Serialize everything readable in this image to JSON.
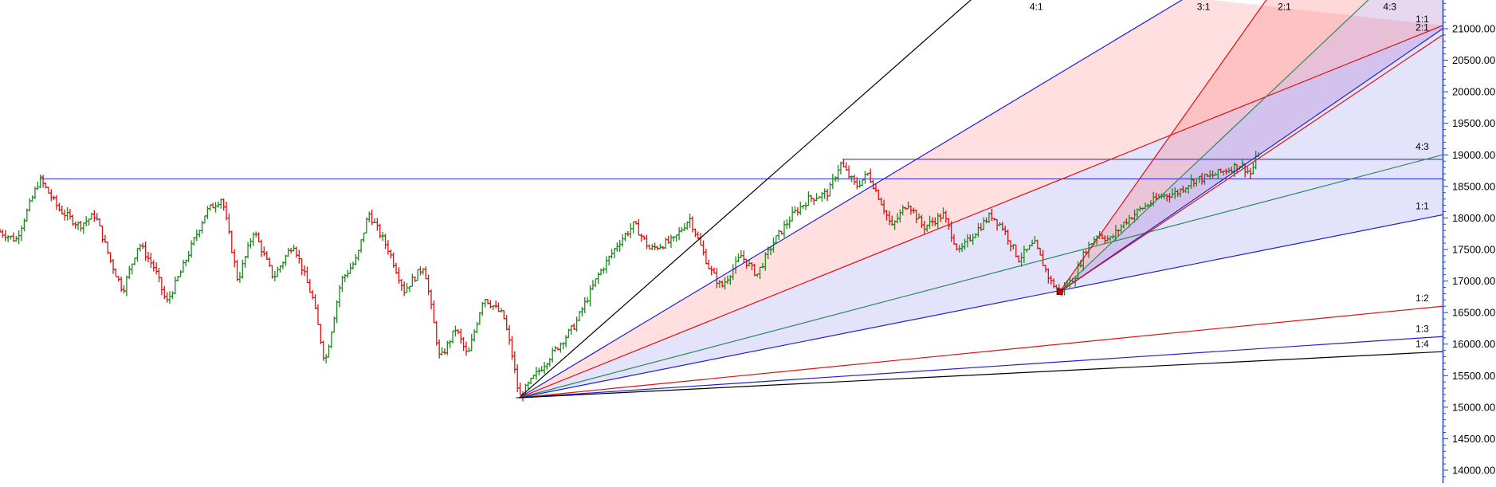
{
  "chart_data": {
    "type": "ohlc",
    "y_axis": {
      "position": "right",
      "ylim": [
        13800,
        21500
      ],
      "ticks": [
        14000,
        14500,
        15000,
        15500,
        16000,
        16500,
        17000,
        17500,
        18000,
        18500,
        19000,
        19500,
        20000,
        20500,
        21000
      ],
      "tick_labels": [
        "14000.00",
        "14500.00",
        "15000.00",
        "15500.00",
        "16000.00",
        "16500.00",
        "17000.00",
        "17500.00",
        "18000.00",
        "18500.00",
        "19000.00",
        "19500.00",
        "20000.00",
        "20500.00",
        "21000.00"
      ]
    },
    "x_range": [
      0,
      1820
    ],
    "grid": false,
    "colors": {
      "up": "#1a8a1a",
      "down": "#e01010",
      "axis": "#2244cc"
    },
    "anchor_points": [
      {
        "x": 50,
        "y": 18620
      },
      {
        "x": 655,
        "y": 15150
      },
      {
        "x": 1060,
        "y": 18870
      },
      {
        "x": 1337,
        "y": 16830
      }
    ],
    "horizontal_levels": [
      {
        "value": 18620,
        "from_x": 50,
        "color": "#2222cc"
      },
      {
        "value": 18930,
        "from_x": 1063,
        "color": "#2222cc"
      }
    ],
    "price_waypoints": [
      [
        0,
        17780
      ],
      [
        20,
        17650
      ],
      [
        50,
        18620
      ],
      [
        75,
        18130
      ],
      [
        100,
        17880
      ],
      [
        120,
        18050
      ],
      [
        140,
        17300
      ],
      [
        155,
        16850
      ],
      [
        175,
        17600
      ],
      [
        195,
        17200
      ],
      [
        210,
        16650
      ],
      [
        230,
        17200
      ],
      [
        260,
        18100
      ],
      [
        280,
        18320
      ],
      [
        300,
        17000
      ],
      [
        320,
        17800
      ],
      [
        345,
        17050
      ],
      [
        370,
        17600
      ],
      [
        395,
        16700
      ],
      [
        410,
        15700
      ],
      [
        430,
        17000
      ],
      [
        450,
        17350
      ],
      [
        465,
        18080
      ],
      [
        490,
        17500
      ],
      [
        510,
        16850
      ],
      [
        535,
        17250
      ],
      [
        555,
        15750
      ],
      [
        575,
        16250
      ],
      [
        590,
        15800
      ],
      [
        610,
        16750
      ],
      [
        635,
        16450
      ],
      [
        645,
        15900
      ],
      [
        655,
        15150
      ],
      [
        675,
        15500
      ],
      [
        700,
        15900
      ],
      [
        725,
        16300
      ],
      [
        755,
        17100
      ],
      [
        780,
        17600
      ],
      [
        800,
        17900
      ],
      [
        820,
        17500
      ],
      [
        850,
        17650
      ],
      [
        870,
        18000
      ],
      [
        895,
        17200
      ],
      [
        910,
        16900
      ],
      [
        935,
        17400
      ],
      [
        955,
        17100
      ],
      [
        975,
        17600
      ],
      [
        1000,
        18050
      ],
      [
        1020,
        18300
      ],
      [
        1045,
        18400
      ],
      [
        1060,
        18870
      ],
      [
        1080,
        18500
      ],
      [
        1095,
        18700
      ],
      [
        1110,
        18300
      ],
      [
        1125,
        17850
      ],
      [
        1145,
        18250
      ],
      [
        1165,
        17850
      ],
      [
        1190,
        18050
      ],
      [
        1210,
        17450
      ],
      [
        1225,
        17700
      ],
      [
        1250,
        18050
      ],
      [
        1265,
        17850
      ],
      [
        1285,
        17350
      ],
      [
        1305,
        17600
      ],
      [
        1325,
        17000
      ],
      [
        1337,
        16830
      ],
      [
        1355,
        17050
      ],
      [
        1370,
        17500
      ],
      [
        1385,
        17750
      ],
      [
        1400,
        17650
      ],
      [
        1420,
        17950
      ],
      [
        1440,
        18150
      ],
      [
        1465,
        18350
      ],
      [
        1485,
        18400
      ],
      [
        1505,
        18600
      ],
      [
        1525,
        18650
      ],
      [
        1545,
        18750
      ],
      [
        1565,
        18850
      ],
      [
        1578,
        18700
      ],
      [
        1588,
        19050
      ]
    ],
    "fan_lines": [
      {
        "origin_index": 1,
        "ratio": "4:1",
        "end": [
          1283,
          22100
        ],
        "color": "#000000",
        "label": "4:1",
        "label_x": 1299,
        "label_y": 21300
      },
      {
        "origin_index": 1,
        "ratio": "3:1",
        "end": [
          1497,
          21500
        ],
        "color": "#2222cc",
        "label": "",
        "label_x": 0,
        "label_y": 0
      },
      {
        "origin_index": 1,
        "ratio": "2:1",
        "end": [
          1820,
          21050
        ],
        "color": "#e01010",
        "label": "2:1",
        "label_x": 1786,
        "label_y": 20970
      },
      {
        "origin_index": 1,
        "ratio": "4:3",
        "end": [
          1820,
          19000
        ],
        "color": "#2a8a5a",
        "label": "4:3",
        "label_x": 1786,
        "label_y": 19080
      },
      {
        "origin_index": 1,
        "ratio": "1:1",
        "end": [
          1820,
          18050
        ],
        "color": "#2222cc",
        "label": "1:1",
        "label_x": 1786,
        "label_y": 18140
      },
      {
        "origin_index": 1,
        "ratio": "1:2",
        "end": [
          1820,
          16600
        ],
        "color": "#e01010",
        "label": "1:2",
        "label_x": 1786,
        "label_y": 16680
      },
      {
        "origin_index": 1,
        "ratio": "1:3",
        "end": [
          1820,
          16120
        ],
        "color": "#2222cc",
        "label": "1:3",
        "label_x": 1786,
        "label_y": 16190
      },
      {
        "origin_index": 1,
        "ratio": "1:4",
        "end": [
          1820,
          15880
        ],
        "color": "#000000",
        "label": "1:4",
        "label_x": 1786,
        "label_y": 15950
      },
      {
        "origin_index": 3,
        "ratio": "3:1",
        "end": [
          1600,
          21500
        ],
        "color": "#e01010",
        "label": "3:1",
        "label_x": 1510,
        "label_y": 21300
      },
      {
        "origin_index": 3,
        "ratio": "2:1",
        "end": [
          1730,
          21500
        ],
        "color": "#2a8a5a",
        "label": "2:1",
        "label_x": 1612,
        "label_y": 21300
      },
      {
        "origin_index": 3,
        "ratio": "4:3",
        "end": [
          1820,
          21000
        ],
        "color": "#2222cc",
        "label": "4:3",
        "label_x": 1745,
        "label_y": 21300
      },
      {
        "origin_index": 3,
        "ratio": "1:1",
        "end": [
          1820,
          20900
        ],
        "color": "#e01010",
        "label": "1:1",
        "label_x": 1786,
        "label_y": 21100
      }
    ],
    "shaded_regions": [
      {
        "points": [
          [
            655,
            15150
          ],
          [
            1497,
            21500
          ],
          [
            1283,
            22100
          ]
        ],
        "color": "#ff8080",
        "opacity": 0.0
      },
      {
        "points": [
          [
            655,
            15150
          ],
          [
            1497,
            21500
          ],
          [
            1820,
            21050
          ]
        ],
        "color": "#ff8080",
        "opacity": 0.25
      },
      {
        "points": [
          [
            655,
            15150
          ],
          [
            1820,
            21050
          ],
          [
            1820,
            18050
          ]
        ],
        "color": "#8080f0",
        "opacity": 0.22
      },
      {
        "points": [
          [
            1337,
            16830
          ],
          [
            1600,
            21500
          ],
          [
            1730,
            21500
          ]
        ],
        "color": "#ff8080",
        "opacity": 0.3
      },
      {
        "points": [
          [
            1337,
            16830
          ],
          [
            1730,
            21500
          ],
          [
            1820,
            21500
          ],
          [
            1820,
            21000
          ]
        ],
        "color": "#a060c0",
        "opacity": 0.25
      }
    ]
  }
}
